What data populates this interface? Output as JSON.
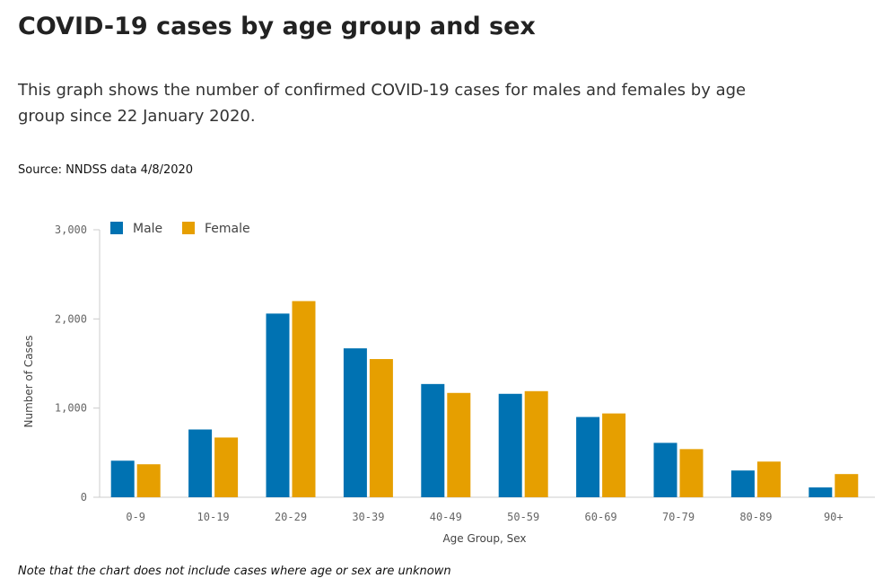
{
  "page": {
    "title": "COVID-19 cases by age group and sex",
    "description": "This graph shows the number of confirmed COVID-19 cases for males and females by age group since 22 January 2020.",
    "source": "Source: NNDSS data 4/8/2020",
    "note": "Note that the chart does not include cases where age or sex are unknown"
  },
  "chart_data": {
    "type": "bar",
    "title": "",
    "xlabel": "Age Group, Sex",
    "ylabel": "Number of Cases",
    "ylim": [
      0,
      3000
    ],
    "yticks": [
      0,
      1000,
      2000,
      3000
    ],
    "ytick_labels": [
      "0",
      "1,000",
      "2,000",
      "3,000"
    ],
    "grid": false,
    "legend_position": "top-left",
    "categories": [
      "0-9",
      "10-19",
      "20-29",
      "30-39",
      "40-49",
      "50-59",
      "60-69",
      "70-79",
      "80-89",
      "90+"
    ],
    "series": [
      {
        "name": "Male",
        "color": "#0072b2",
        "values": [
          410,
          760,
          2060,
          1670,
          1270,
          1160,
          900,
          610,
          300,
          110
        ]
      },
      {
        "name": "Female",
        "color": "#e69f00",
        "values": [
          370,
          670,
          2200,
          1550,
          1170,
          1190,
          940,
          540,
          400,
          260
        ]
      }
    ]
  }
}
